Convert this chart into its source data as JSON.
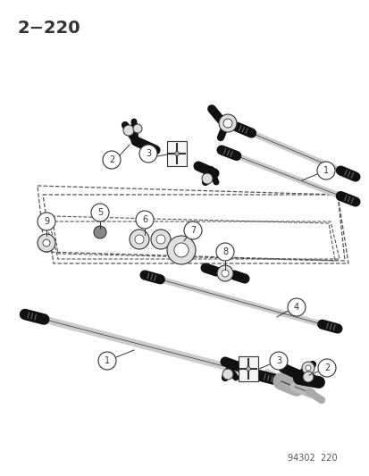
{
  "bg_color": "#ffffff",
  "title_text": "2−220",
  "footer_text": "94302  220",
  "figsize": [
    4.14,
    5.33
  ],
  "dpi": 100,
  "line_color": "#333333",
  "dark_color": "#111111",
  "mid_color": "#777777",
  "light_color": "#cccccc",
  "white_color": "#ffffff",
  "dash_color": "#555555"
}
